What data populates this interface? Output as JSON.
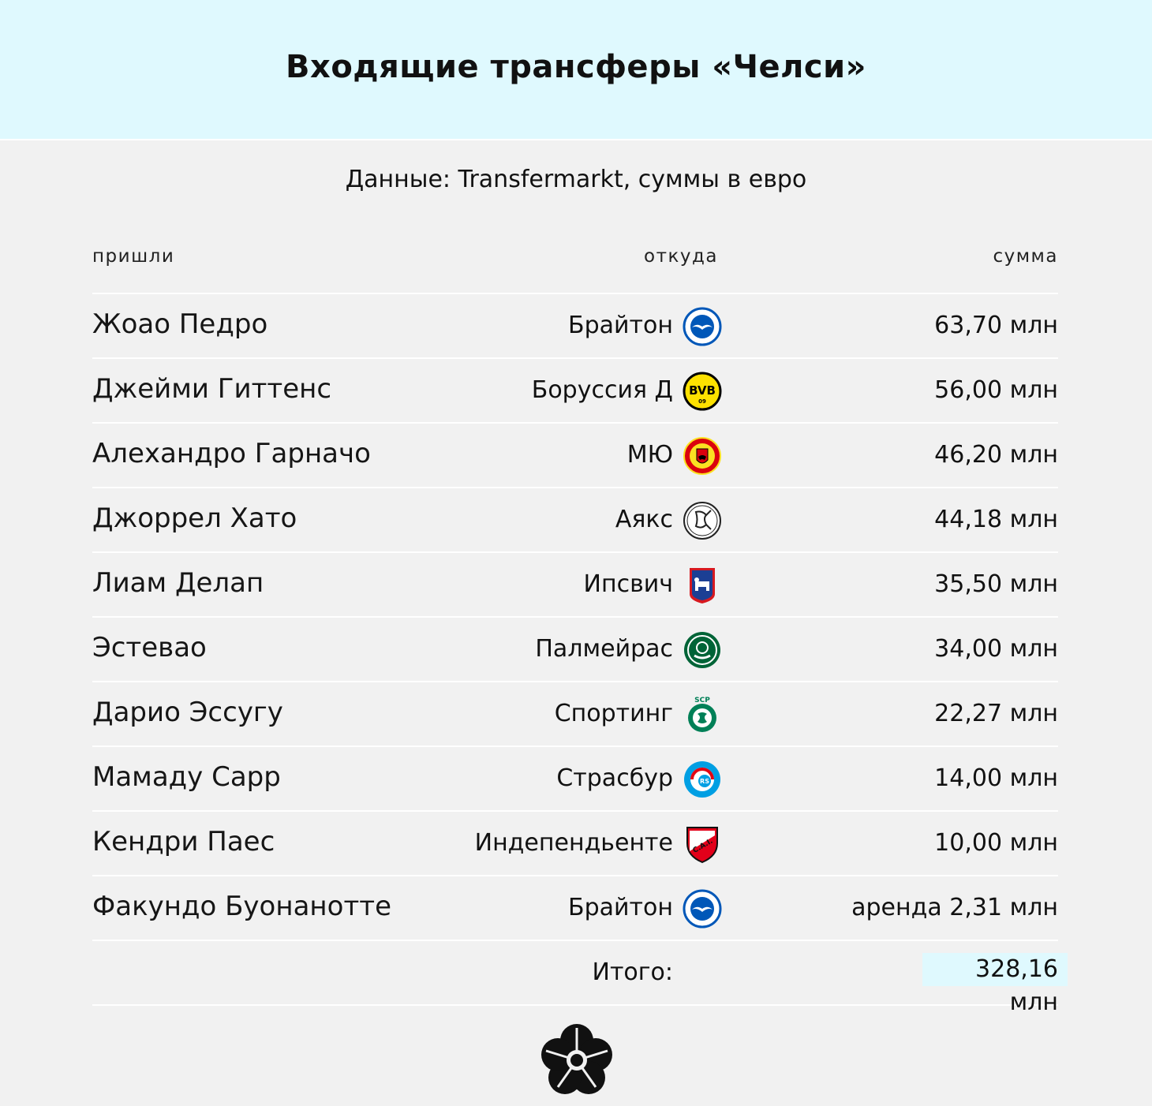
{
  "header": {
    "title": "Входящие трансферы «Челси»"
  },
  "subtitle": "Данные: Transfermarkt, суммы в евро",
  "columns": {
    "name": "пришли",
    "from": "откуда",
    "sum": "сумма"
  },
  "rows": [
    {
      "name": "Жоао Педро",
      "from": "Брайтон",
      "sum": "63,70 млн",
      "logo": "brighton-crest-icon"
    },
    {
      "name": "Джейми Гиттенс",
      "from": "Боруссия Д",
      "sum": "56,00 млн",
      "logo": "bvb-crest-icon"
    },
    {
      "name": "Алехандро Гарначо",
      "from": "МЮ",
      "sum": "46,20 млн",
      "logo": "man-united-crest-icon"
    },
    {
      "name": "Джоррел Хато",
      "from": "Аякс",
      "sum": "44,18 млн",
      "logo": "ajax-crest-icon"
    },
    {
      "name": "Лиам Делап",
      "from": "Ипсвич",
      "sum": "35,50 млн",
      "logo": "ipswich-crest-icon"
    },
    {
      "name": "Эстевао",
      "from": "Палмейрас",
      "sum": "34,00 млн",
      "logo": "palmeiras-crest-icon"
    },
    {
      "name": "Дарио Эссугу",
      "from": "Спортинг",
      "sum": "22,27 млн",
      "logo": "sporting-crest-icon"
    },
    {
      "name": "Мамаду Сарр",
      "from": "Страсбур",
      "sum": "14,00 млн",
      "logo": "strasbourg-crest-icon"
    },
    {
      "name": "Кендри Паес",
      "from": "Индепендьенте",
      "sum": "10,00 млн",
      "logo": "independiente-crest-icon"
    },
    {
      "name": "Факундо Буонанотте",
      "from": "Брайтон",
      "sum": "аренда 2,31 млн",
      "logo": "brighton-crest-icon"
    }
  ],
  "total": {
    "label": "Итого:",
    "value": "328,16 млн"
  },
  "colors": {
    "header_bg": "#dff9fe",
    "page_bg": "#f1f1f1",
    "highlight": "#dff9fe"
  },
  "brand_icon": "flower-logo-icon"
}
